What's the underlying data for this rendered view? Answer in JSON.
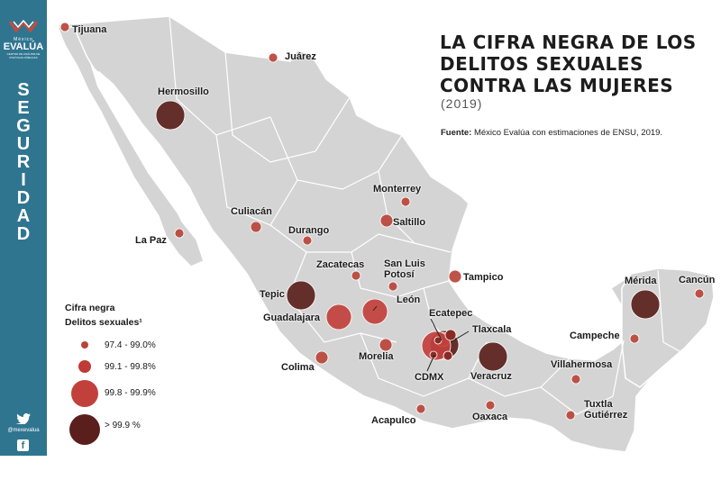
{
  "sidebar": {
    "logo_small": "México",
    "logo_main": "EVALÚA",
    "logo_sub": "CENTRO DE ANÁLISIS DE POLÍTICAS PÚBLICAS",
    "section_letters": [
      "S",
      "E",
      "G",
      "U",
      "R",
      "I",
      "D",
      "A",
      "D"
    ],
    "handle": "@mexevalua",
    "facebook_glyph": "f",
    "color": "#2f7590"
  },
  "title_lines": [
    "LA CIFRA NEGRA DE LOS",
    "DELITOS SEXUALES",
    "CONTRA LAS MUJERES"
  ],
  "year": "(2019)",
  "source_label": "Fuente:",
  "source_text": "México Evalúa con estimaciones de ENSU, 2019.",
  "legend": {
    "title_line1": "Cifra negra",
    "title_line2": "Delitos sexuales¹",
    "items": [
      {
        "label": "97.4 - 99.0%",
        "color": "#b8453a"
      },
      {
        "label": "99.1 - 99.8%",
        "color": "#bf3b36"
      },
      {
        "label": "99.8 - 99.9%",
        "color": "#c2403c"
      },
      {
        "label": "> 99.9 %",
        "color": "#5a1f1c"
      }
    ]
  },
  "cities": [
    {
      "name": "Tijuana",
      "cls": 1
    },
    {
      "name": "Juárez",
      "cls": 1
    },
    {
      "name": "Hermosillo",
      "cls": 4
    },
    {
      "name": "Culiacán",
      "cls": 1
    },
    {
      "name": "La Paz",
      "cls": 1
    },
    {
      "name": "Durango",
      "cls": 1
    },
    {
      "name": "Monterrey",
      "cls": 1
    },
    {
      "name": "Saltillo",
      "cls": 1
    },
    {
      "name": "Zacatecas",
      "cls": 1
    },
    {
      "name": "San Luis Potosí",
      "cls": 1
    },
    {
      "name": "Tampico",
      "cls": 1
    },
    {
      "name": "Tepic",
      "cls": 4
    },
    {
      "name": "Guadalajara",
      "cls": 3
    },
    {
      "name": "León",
      "cls": 3
    },
    {
      "name": "Colima",
      "cls": 1
    },
    {
      "name": "Morelia",
      "cls": 1
    },
    {
      "name": "Ecatepec",
      "cls": 4
    },
    {
      "name": "Tlaxcala",
      "cls": 1
    },
    {
      "name": "CDMX",
      "cls": 3
    },
    {
      "name": "Veracruz",
      "cls": 4
    },
    {
      "name": "Acapulco",
      "cls": 1
    },
    {
      "name": "Oaxaca",
      "cls": 1
    },
    {
      "name": "Villahermosa",
      "cls": 1
    },
    {
      "name": "Campeche",
      "cls": 1
    },
    {
      "name": "Mérida",
      "cls": 4
    },
    {
      "name": "Cancún",
      "cls": 1
    },
    {
      "name": "Tuxtla Gutiérrez",
      "cls": 1
    }
  ],
  "map_color": "#d4d4d4",
  "border_color": "#ffffff"
}
